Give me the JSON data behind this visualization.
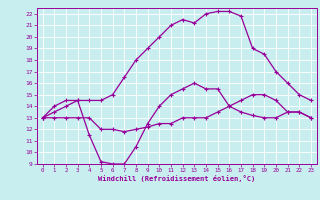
{
  "xlabel": "Windchill (Refroidissement éolien,°C)",
  "bg_color": "#c8eef0",
  "grid_color": "#ffffff",
  "line_color": "#990099",
  "xlim": [
    -0.5,
    23.5
  ],
  "ylim": [
    9,
    22.5
  ],
  "xticks": [
    0,
    1,
    2,
    3,
    4,
    5,
    6,
    7,
    8,
    9,
    10,
    11,
    12,
    13,
    14,
    15,
    16,
    17,
    18,
    19,
    20,
    21,
    22,
    23
  ],
  "yticks": [
    9,
    10,
    11,
    12,
    13,
    14,
    15,
    16,
    17,
    18,
    19,
    20,
    21,
    22
  ],
  "line1_x": [
    0,
    1,
    2,
    3,
    4,
    5,
    6,
    7,
    8,
    9,
    10,
    11,
    12,
    13,
    14,
    15,
    16,
    17,
    18,
    19,
    20,
    21,
    22,
    23
  ],
  "line1_y": [
    13.0,
    13.5,
    14.0,
    14.5,
    14.5,
    14.5,
    15.0,
    16.5,
    18.0,
    19.0,
    20.0,
    21.0,
    21.5,
    21.2,
    22.0,
    22.2,
    22.2,
    21.8,
    19.0,
    18.5,
    17.0,
    16.0,
    15.0,
    14.5
  ],
  "line2_x": [
    0,
    1,
    2,
    3,
    4,
    5,
    6,
    7,
    8,
    9,
    10,
    11,
    12,
    13,
    14,
    15,
    16,
    17,
    18,
    19,
    20,
    21,
    22,
    23
  ],
  "line2_y": [
    13.0,
    14.0,
    14.5,
    14.5,
    11.5,
    9.2,
    9.0,
    9.0,
    10.5,
    12.5,
    14.0,
    15.0,
    15.5,
    16.0,
    15.5,
    15.5,
    14.0,
    13.5,
    13.2,
    13.0,
    13.0,
    13.5,
    13.5,
    13.0
  ],
  "line3_x": [
    0,
    1,
    2,
    3,
    4,
    5,
    6,
    7,
    8,
    9,
    10,
    11,
    12,
    13,
    14,
    15,
    16,
    17,
    18,
    19,
    20,
    21,
    22,
    23
  ],
  "line3_y": [
    13.0,
    13.0,
    13.0,
    13.0,
    13.0,
    12.0,
    12.0,
    11.8,
    12.0,
    12.2,
    12.5,
    12.5,
    13.0,
    13.0,
    13.0,
    13.5,
    14.0,
    14.5,
    15.0,
    15.0,
    14.5,
    13.5,
    13.5,
    13.0
  ]
}
